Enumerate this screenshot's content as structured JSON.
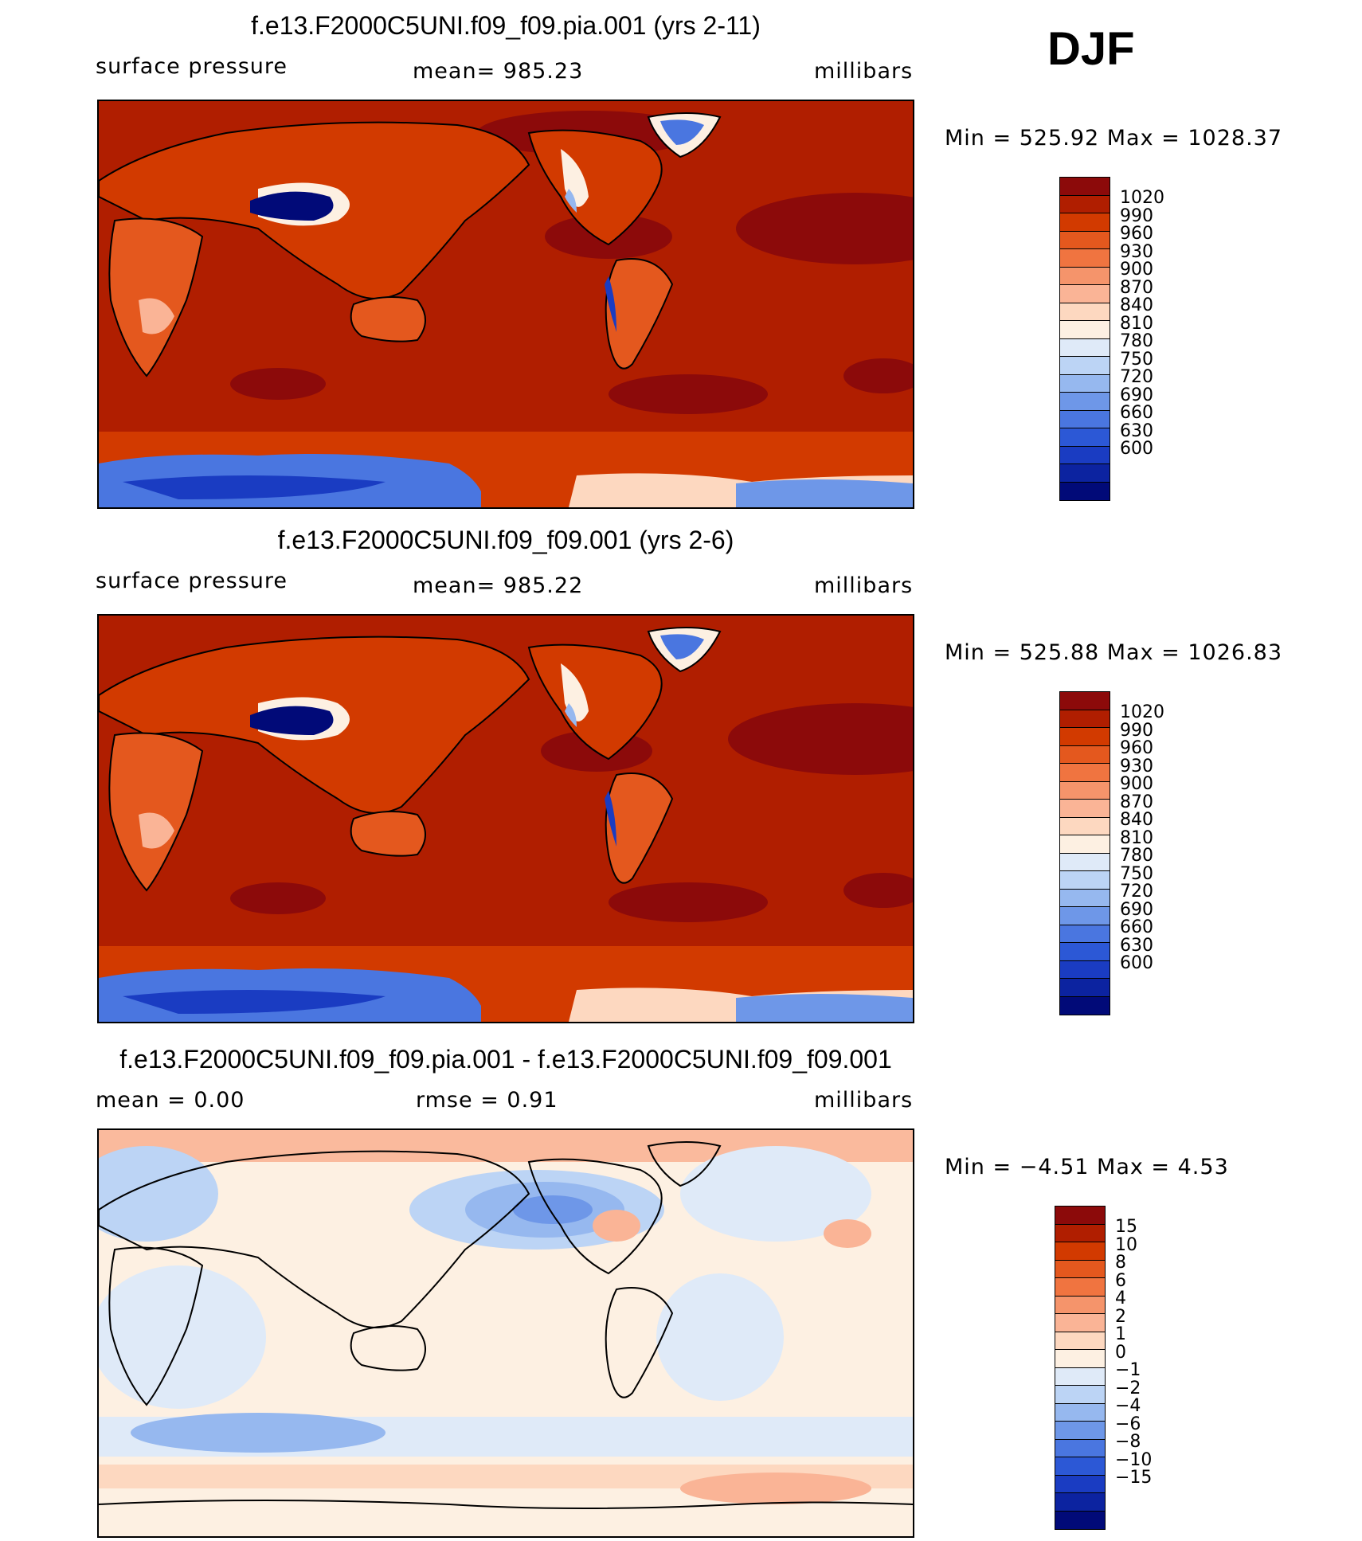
{
  "season": "DJF",
  "colors": {
    "land_outline": "#000000",
    "abs_scale": [
      "#8c0a0a",
      "#b01e00",
      "#d23a00",
      "#e4581e",
      "#f07440",
      "#f5946b",
      "#fab496",
      "#fdd8c0",
      "#fdf0e2",
      "#dfeaf8",
      "#bcd4f5",
      "#96b8ef",
      "#6e97e8",
      "#4a76e0",
      "#2c58d6",
      "#1a3cc2",
      "#0c23a0",
      "#010a78"
    ],
    "diff_scale": [
      "#8c0a0a",
      "#b01e00",
      "#d23a00",
      "#e4581e",
      "#f07440",
      "#f5946b",
      "#fab496",
      "#fdd8c0",
      "#fdf0e2",
      "#dfeaf8",
      "#bcd4f5",
      "#96b8ef",
      "#6e97e8",
      "#4a76e0",
      "#2c58d6",
      "#1a3cc2",
      "#0c23a0",
      "#010a78"
    ]
  },
  "panels": [
    {
      "title": "f.e13.F2000C5UNI.f09_f09.pia.001 (yrs 2-11)",
      "left_label": "surface pressure",
      "center_label": "mean=  985.23",
      "units": "millibars",
      "minmax": "Min  =  525.92  Max  =  1028.37"
    },
    {
      "title": "f.e13.F2000C5UNI.f09_f09.001 (yrs 2-6)",
      "left_label": "surface pressure",
      "center_label": "mean=  985.22",
      "units": "millibars",
      "minmax": "Min  =  525.88  Max  =  1026.83"
    },
    {
      "title": "f.e13.F2000C5UNI.f09_f09.pia.001 - f.e13.F2000C5UNI.f09_f09.001",
      "left_label": "mean =     0.00",
      "center_label": "rmse =      0.91",
      "units": "millibars",
      "minmax": "Min  =     −4.51  Max  =      4.53"
    }
  ],
  "chart_data": [
    {
      "type": "heatmap",
      "title": "f.e13.F2000C5UNI.f09_f09.pia.001 (yrs 2-11)",
      "variable": "surface pressure",
      "units": "millibars",
      "season": "DJF",
      "mean": 985.23,
      "min": 525.92,
      "max": 1028.37,
      "colorbar_levels": [
        "1020",
        "990",
        "960",
        "930",
        "900",
        "870",
        "840",
        "810",
        "780",
        "750",
        "720",
        "690",
        "660",
        "630",
        "600"
      ]
    },
    {
      "type": "heatmap",
      "title": "f.e13.F2000C5UNI.f09_f09.001 (yrs 2-6)",
      "variable": "surface pressure",
      "units": "millibars",
      "season": "DJF",
      "mean": 985.22,
      "min": 525.88,
      "max": 1026.83,
      "colorbar_levels": [
        "1020",
        "990",
        "960",
        "930",
        "900",
        "870",
        "840",
        "810",
        "780",
        "750",
        "720",
        "690",
        "660",
        "630",
        "600"
      ]
    },
    {
      "type": "heatmap",
      "title": "f.e13.F2000C5UNI.f09_f09.pia.001 - f.e13.F2000C5UNI.f09_f09.001",
      "variable": "surface pressure difference",
      "units": "millibars",
      "season": "DJF",
      "mean": 0.0,
      "rmse": 0.91,
      "min": -4.51,
      "max": 4.53,
      "colorbar_levels": [
        "15",
        "10",
        "8",
        "6",
        "4",
        "2",
        "1",
        "0",
        "−1",
        "−2",
        "−4",
        "−6",
        "−8",
        "−10",
        "−15"
      ]
    }
  ]
}
